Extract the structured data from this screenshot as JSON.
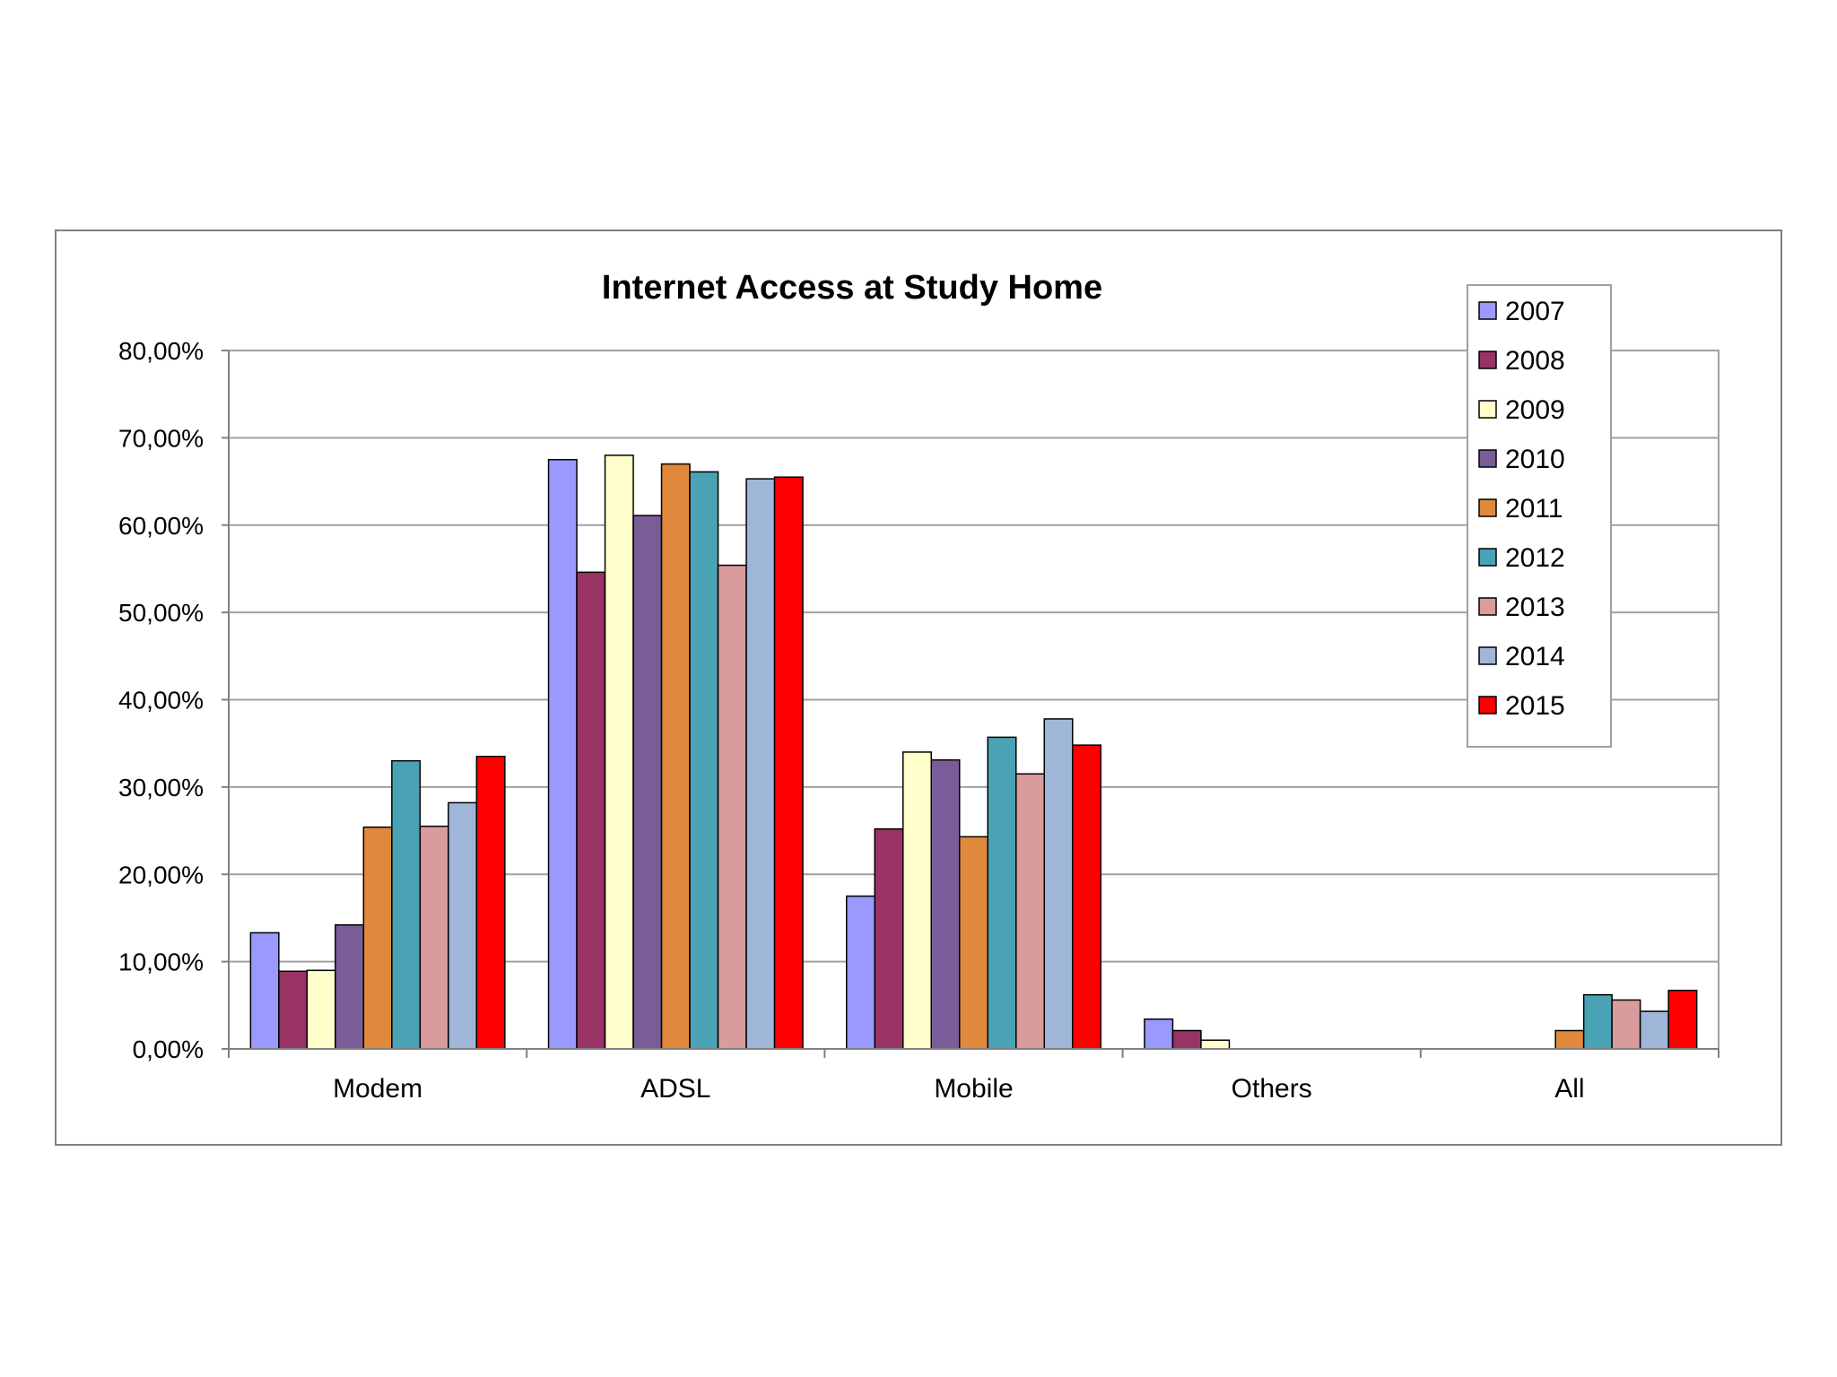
{
  "chart_data": {
    "type": "bar",
    "title": "Internet Access at Study Home",
    "xlabel": "",
    "ylabel": "",
    "categories": [
      "Modem",
      "ADSL",
      "Mobile",
      "Others",
      "All"
    ],
    "ylim": [
      0,
      80
    ],
    "yticks": [
      "0,00%",
      "10,00%",
      "20,00%",
      "30,00%",
      "40,00%",
      "50,00%",
      "60,00%",
      "70,00%",
      "80,00%"
    ],
    "grid": true,
    "legend_position": "top-right",
    "series": [
      {
        "name": "2007",
        "color": "#9999ff",
        "values": [
          13.3,
          67.5,
          17.5,
          3.4,
          0
        ]
      },
      {
        "name": "2008",
        "color": "#993366",
        "values": [
          8.9,
          54.6,
          25.2,
          2.1,
          0
        ]
      },
      {
        "name": "2009",
        "color": "#ffffcc",
        "values": [
          9.0,
          68.0,
          34.0,
          1.0,
          0
        ]
      },
      {
        "name": "2010",
        "color": "#7a5c99",
        "values": [
          14.2,
          61.1,
          33.1,
          0,
          0
        ]
      },
      {
        "name": "2011",
        "color": "#e0893c",
        "values": [
          25.4,
          67.0,
          24.3,
          0,
          2.1
        ]
      },
      {
        "name": "2012",
        "color": "#4aa3b5",
        "values": [
          33.0,
          66.1,
          35.7,
          0,
          6.2
        ]
      },
      {
        "name": "2013",
        "color": "#d99b9b",
        "values": [
          25.5,
          55.4,
          31.5,
          0,
          5.6
        ]
      },
      {
        "name": "2014",
        "color": "#9fb6d8",
        "values": [
          28.2,
          65.3,
          37.8,
          0,
          4.3
        ]
      },
      {
        "name": "2015",
        "color": "#ff0000",
        "values": [
          33.5,
          65.5,
          34.8,
          0,
          6.7
        ]
      }
    ]
  }
}
